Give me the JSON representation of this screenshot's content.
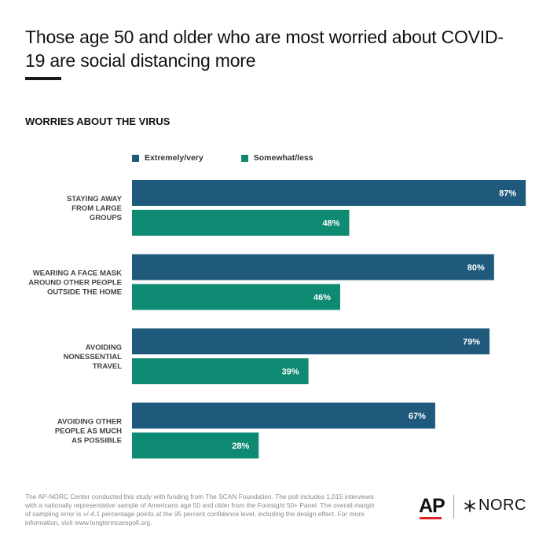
{
  "title": "Those age 50 and older who are most worried about COVID-19 are social distancing more",
  "subtitle": "WORRIES ABOUT THE VIRUS",
  "footnote": "The AP-NORC Center conducted this study with funding from The SCAN Foundation. The poll includes 1,015 interviews with a nationally representative sample of Americans age 50 and older from the Foresight 50+ Panel. The overall margin of sampling error is +/-4.1 percentage points at the 95 percent confidence level, including the design effect. For more information, visit www.longtermcarepoll.org.",
  "logos": {
    "ap": "AP",
    "norc": "NORC"
  },
  "colors": {
    "extremely_very": "#1f5a7d",
    "somewhat_less": "#0f8a72"
  },
  "chart_data": {
    "type": "bar",
    "orientation": "horizontal",
    "title": "WORRIES ABOUT THE VIRUS",
    "categories": [
      [
        "STAYING AWAY",
        "FROM LARGE",
        "GROUPS"
      ],
      [
        "WEARING A FACE MASK",
        "AROUND OTHER PEOPLE",
        "OUTSIDE THE HOME"
      ],
      [
        "AVOIDING",
        "NONESSENTIAL",
        "TRAVEL"
      ],
      [
        "AVOIDING OTHER",
        "PEOPLE AS MUCH",
        "AS POSSIBLE"
      ]
    ],
    "series": [
      {
        "name": "Extremely/very",
        "values": [
          87,
          80,
          79,
          67
        ],
        "labels": [
          "87%",
          "80%",
          "79%",
          "67%"
        ]
      },
      {
        "name": "Somewhat/less",
        "values": [
          48,
          46,
          39,
          28
        ],
        "labels": [
          "48%",
          "46%",
          "39%",
          "28%"
        ]
      }
    ],
    "xlim": [
      0,
      100
    ],
    "grid": false,
    "legend_position": "top-left"
  }
}
